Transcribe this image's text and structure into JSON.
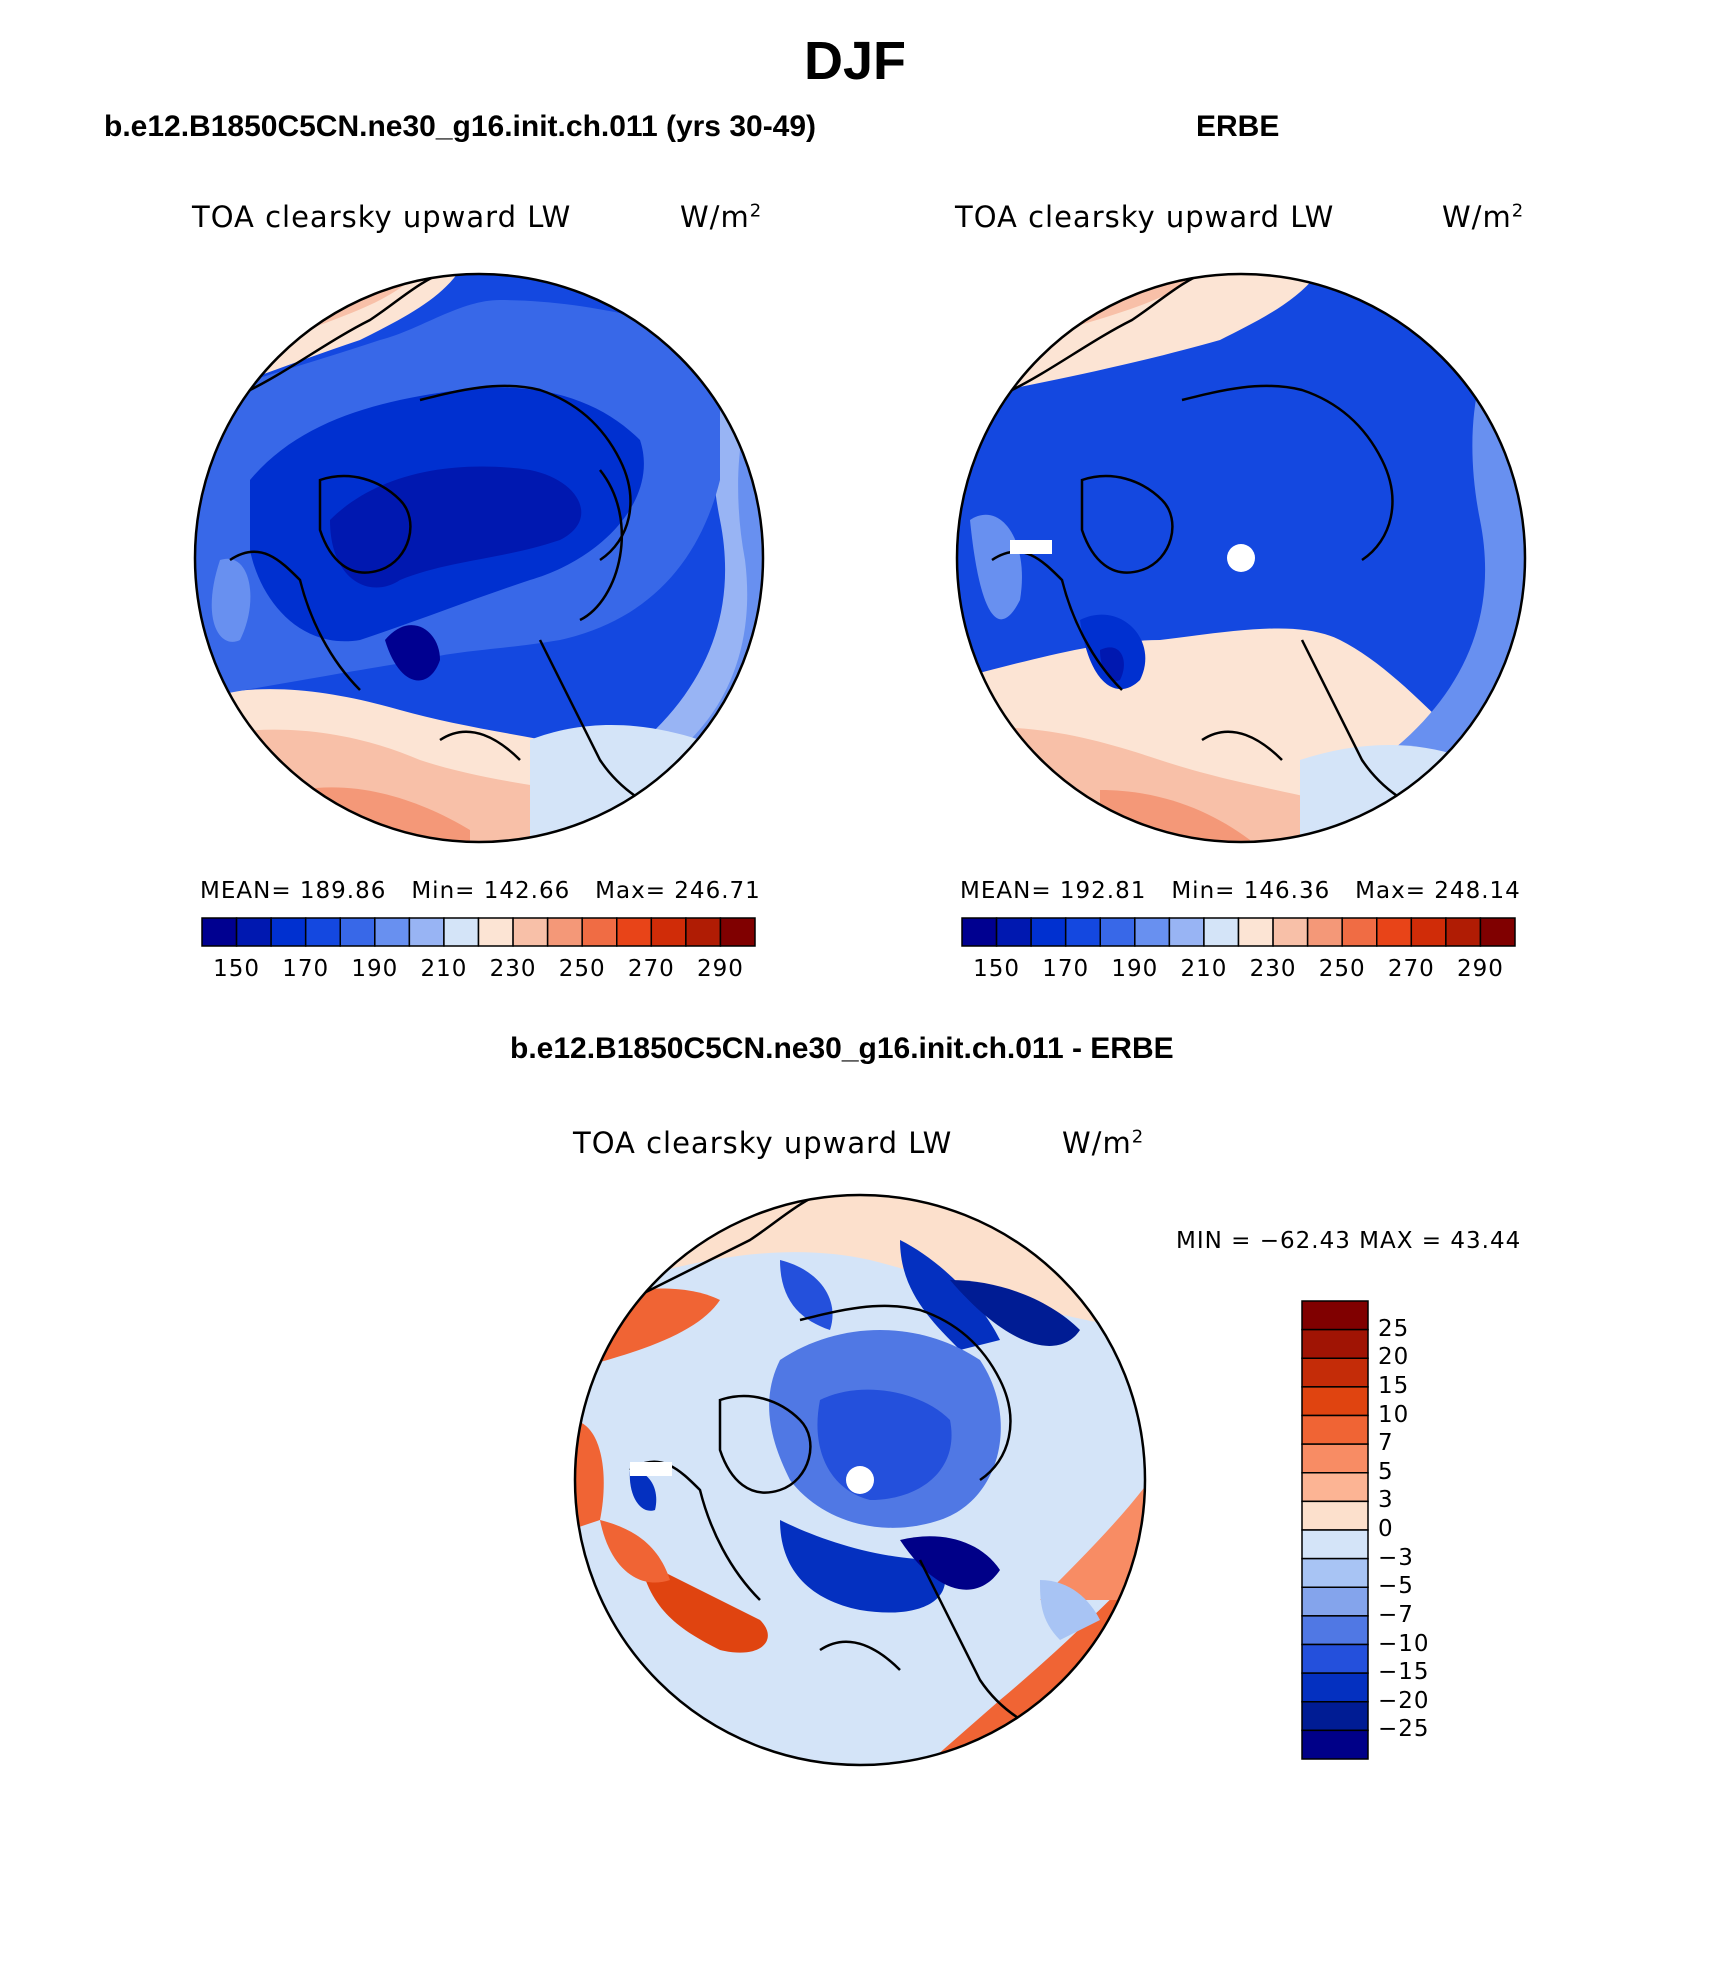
{
  "title": "DJF",
  "panels": [
    {
      "id": "model",
      "title": "b.e12.B1850C5CN.ne30_g16.init.ch.011 (yrs 30-49)",
      "variable": "TOA clearsky upward LW",
      "units_base": "W/m",
      "units_exp": "2",
      "stats": {
        "mean_label": "MEAN=",
        "mean": "189.86",
        "min_label": "Min=",
        "min": "142.66",
        "max_label": "Max=",
        "max": "246.71"
      }
    },
    {
      "id": "obs",
      "title": "ERBE",
      "variable": "TOA clearsky upward LW",
      "units_base": "W/m",
      "units_exp": "2",
      "stats": {
        "mean_label": "MEAN=",
        "mean": "192.81",
        "min_label": "Min=",
        "min": "146.36",
        "max_label": "Max=",
        "max": "248.14"
      }
    },
    {
      "id": "diff",
      "title": "b.e12.B1850C5CN.ne30_g16.init.ch.011 - ERBE",
      "variable": "TOA clearsky upward LW",
      "units_base": "W/m",
      "units_exp": "2",
      "stats_text": "MIN = −62.43 MAX =  43.44"
    }
  ],
  "colorbar_abs": {
    "colors": [
      "#000090",
      "#0018b0",
      "#0030d0",
      "#1448e0",
      "#3868e8",
      "#6890f0",
      "#98b4f4",
      "#d4e4f8",
      "#fce4d4",
      "#f8c0a8",
      "#f49878",
      "#f06c44",
      "#e84418",
      "#d02c08",
      "#b01c04",
      "#800000"
    ],
    "tick_labels": [
      "150",
      "170",
      "190",
      "210",
      "230",
      "250",
      "270",
      "290"
    ]
  },
  "colorbar_diff": {
    "colors": [
      "#800000",
      "#a01404",
      "#c42c08",
      "#e04410",
      "#f06434",
      "#f88c64",
      "#fcb494",
      "#fce0cc",
      "#d4e4f8",
      "#a8c4f4",
      "#84a4ec",
      "#5078e4",
      "#2450dc",
      "#0430c0",
      "#001c94",
      "#000088"
    ],
    "tick_labels": [
      "25",
      "20",
      "15",
      "10",
      "7",
      "5",
      "3",
      "0",
      "−3",
      "−5",
      "−7",
      "−10",
      "−15",
      "−20",
      "−25"
    ]
  }
}
